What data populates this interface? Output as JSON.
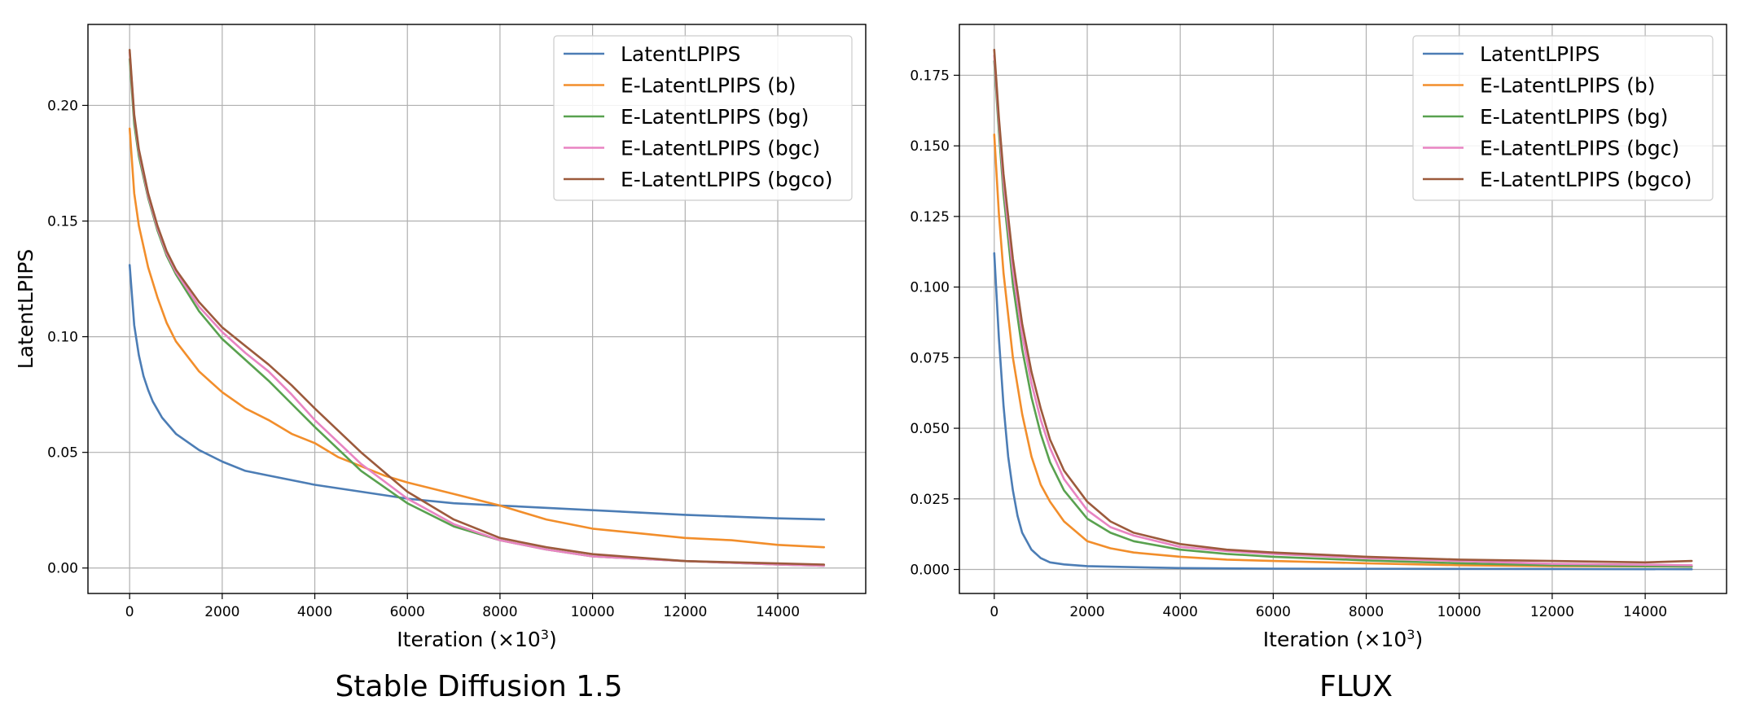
{
  "chart_data": [
    {
      "type": "line",
      "title": "Stable Diffusion 1.5",
      "xlabel": "Iteration (×10",
      "xlabel_sup": "3",
      "xlabel_close": ")",
      "ylabel": "LatentLPIPS",
      "xlim": [
        -900,
        15900
      ],
      "ylim": [
        -0.011,
        0.235
      ],
      "grid": true,
      "legend": "top-right",
      "x_ticks": [
        0,
        2000,
        4000,
        6000,
        8000,
        10000,
        12000,
        14000
      ],
      "x_tick_labels": [
        "0",
        "2000",
        "4000",
        "6000",
        "8000",
        "10000",
        "12000",
        "14000"
      ],
      "y_ticks": [
        0.0,
        0.05,
        0.1,
        0.15,
        0.2
      ],
      "y_tick_labels": [
        "0.00",
        "0.05",
        "0.10",
        "0.15",
        "0.20"
      ],
      "series": [
        {
          "name": "LatentLPIPS",
          "color": "#4c7db5",
          "x": [
            0,
            100,
            200,
            300,
            400,
            500,
            700,
            1000,
            1500,
            2000,
            2500,
            3000,
            4000,
            5000,
            6000,
            7000,
            8000,
            10000,
            12000,
            14000,
            15000
          ],
          "y": [
            0.131,
            0.105,
            0.092,
            0.083,
            0.077,
            0.072,
            0.065,
            0.058,
            0.051,
            0.046,
            0.042,
            0.04,
            0.036,
            0.033,
            0.03,
            0.028,
            0.027,
            0.025,
            0.023,
            0.0215,
            0.021
          ]
        },
        {
          "name": "E-LatentLPIPS (b)",
          "color": "#f28e2b",
          "x": [
            0,
            100,
            200,
            400,
            600,
            800,
            1000,
            1500,
            2000,
            2500,
            3000,
            3500,
            4000,
            4500,
            5000,
            5500,
            6000,
            7000,
            8000,
            9000,
            10000,
            11000,
            12000,
            13000,
            14000,
            15000
          ],
          "y": [
            0.19,
            0.162,
            0.148,
            0.13,
            0.117,
            0.106,
            0.098,
            0.085,
            0.076,
            0.069,
            0.064,
            0.058,
            0.054,
            0.048,
            0.044,
            0.04,
            0.037,
            0.032,
            0.027,
            0.021,
            0.017,
            0.015,
            0.013,
            0.012,
            0.01,
            0.009
          ]
        },
        {
          "name": "E-LatentLPIPS (bg)",
          "color": "#59a14f",
          "x": [
            0,
            100,
            200,
            400,
            600,
            800,
            1000,
            1500,
            2000,
            2500,
            3000,
            3500,
            4000,
            5000,
            6000,
            7000,
            8000,
            9000,
            10000,
            12000,
            14000,
            15000
          ],
          "y": [
            0.22,
            0.192,
            0.178,
            0.16,
            0.146,
            0.135,
            0.127,
            0.111,
            0.099,
            0.09,
            0.081,
            0.071,
            0.061,
            0.042,
            0.028,
            0.018,
            0.012,
            0.008,
            0.005,
            0.003,
            0.0015,
            0.001
          ]
        },
        {
          "name": "E-LatentLPIPS (bgc)",
          "color": "#e884c2",
          "x": [
            0,
            100,
            200,
            400,
            600,
            800,
            1000,
            1500,
            2000,
            2500,
            3000,
            3500,
            4000,
            5000,
            6000,
            7000,
            8000,
            9000,
            10000,
            12000,
            14000,
            15000
          ],
          "y": [
            0.223,
            0.195,
            0.18,
            0.161,
            0.147,
            0.136,
            0.128,
            0.113,
            0.102,
            0.093,
            0.085,
            0.075,
            0.064,
            0.045,
            0.03,
            0.019,
            0.012,
            0.008,
            0.005,
            0.003,
            0.0015,
            0.001
          ]
        },
        {
          "name": "E-LatentLPIPS (bgco)",
          "color": "#9c5a3c",
          "x": [
            0,
            100,
            200,
            400,
            600,
            800,
            1000,
            1500,
            2000,
            2500,
            3000,
            3500,
            4000,
            5000,
            6000,
            7000,
            8000,
            9000,
            10000,
            12000,
            14000,
            15000
          ],
          "y": [
            0.224,
            0.196,
            0.181,
            0.162,
            0.148,
            0.137,
            0.129,
            0.115,
            0.104,
            0.096,
            0.088,
            0.079,
            0.069,
            0.05,
            0.033,
            0.021,
            0.013,
            0.009,
            0.006,
            0.003,
            0.002,
            0.0015
          ]
        }
      ]
    },
    {
      "type": "line",
      "title": "FLUX",
      "xlabel": "Iteration (×10",
      "xlabel_sup": "3",
      "xlabel_close": ")",
      "ylabel": "",
      "xlim": [
        -750,
        15750
      ],
      "ylim": [
        -0.0085,
        0.193
      ],
      "grid": true,
      "legend": "top-right",
      "x_ticks": [
        0,
        2000,
        4000,
        6000,
        8000,
        10000,
        12000,
        14000
      ],
      "x_tick_labels": [
        "0",
        "2000",
        "4000",
        "6000",
        "8000",
        "10000",
        "12000",
        "14000"
      ],
      "y_ticks": [
        0.0,
        0.025,
        0.05,
        0.075,
        0.1,
        0.125,
        0.15,
        0.175
      ],
      "y_tick_labels": [
        "0.000",
        "0.025",
        "0.050",
        "0.075",
        "0.100",
        "0.125",
        "0.150",
        "0.175"
      ],
      "series": [
        {
          "name": "LatentLPIPS",
          "color": "#4c7db5",
          "x": [
            0,
            100,
            200,
            300,
            400,
            500,
            600,
            800,
            1000,
            1200,
            1500,
            2000,
            3000,
            4000,
            6000,
            10000,
            15000
          ],
          "y": [
            0.112,
            0.082,
            0.058,
            0.04,
            0.028,
            0.019,
            0.013,
            0.007,
            0.004,
            0.0025,
            0.0018,
            0.0012,
            0.0008,
            0.0005,
            0.0003,
            0.0002,
            0.0001
          ]
        },
        {
          "name": "E-LatentLPIPS (b)",
          "color": "#f28e2b",
          "x": [
            0,
            100,
            200,
            400,
            600,
            800,
            1000,
            1200,
            1500,
            2000,
            2500,
            3000,
            4000,
            5000,
            6000,
            8000,
            10000,
            12000,
            15000
          ],
          "y": [
            0.154,
            0.126,
            0.105,
            0.075,
            0.055,
            0.04,
            0.03,
            0.024,
            0.017,
            0.01,
            0.0075,
            0.006,
            0.0045,
            0.0035,
            0.003,
            0.0022,
            0.0015,
            0.0012,
            0.001
          ]
        },
        {
          "name": "E-LatentLPIPS (bg)",
          "color": "#59a14f",
          "x": [
            0,
            100,
            200,
            400,
            600,
            800,
            1000,
            1200,
            1500,
            2000,
            2500,
            3000,
            4000,
            5000,
            6000,
            8000,
            10000,
            12000,
            15000
          ],
          "y": [
            0.18,
            0.155,
            0.133,
            0.101,
            0.078,
            0.061,
            0.048,
            0.038,
            0.028,
            0.018,
            0.013,
            0.01,
            0.007,
            0.0055,
            0.0045,
            0.0032,
            0.0022,
            0.0015,
            0.001
          ]
        },
        {
          "name": "E-LatentLPIPS (bgc)",
          "color": "#e884c2",
          "x": [
            0,
            100,
            200,
            400,
            600,
            800,
            1000,
            1200,
            1500,
            2000,
            2500,
            3000,
            4000,
            5000,
            6000,
            8000,
            10000,
            12000,
            15000
          ],
          "y": [
            0.182,
            0.158,
            0.137,
            0.106,
            0.083,
            0.066,
            0.053,
            0.043,
            0.032,
            0.021,
            0.015,
            0.012,
            0.008,
            0.0065,
            0.0055,
            0.004,
            0.003,
            0.002,
            0.0015
          ]
        },
        {
          "name": "E-LatentLPIPS (bgco)",
          "color": "#9c5a3c",
          "x": [
            0,
            100,
            200,
            400,
            600,
            800,
            1000,
            1200,
            1500,
            2000,
            2500,
            3000,
            4000,
            5000,
            6000,
            8000,
            10000,
            12000,
            14000,
            15000
          ],
          "y": [
            0.184,
            0.16,
            0.14,
            0.11,
            0.087,
            0.07,
            0.057,
            0.046,
            0.035,
            0.024,
            0.017,
            0.013,
            0.009,
            0.007,
            0.006,
            0.0045,
            0.0035,
            0.003,
            0.0025,
            0.003
          ]
        }
      ]
    }
  ]
}
